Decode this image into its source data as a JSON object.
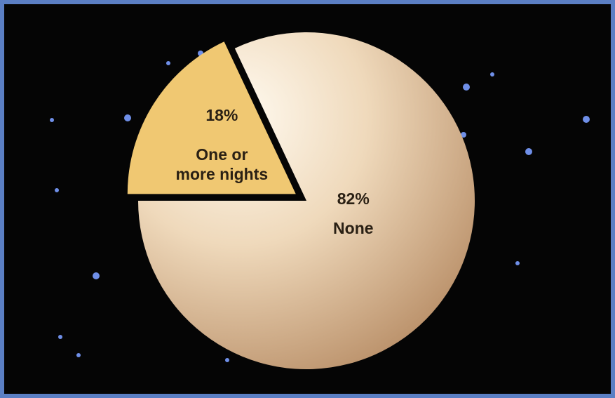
{
  "chart_data": {
    "type": "pie",
    "categories": [
      "One or\nmore nights",
      "None"
    ],
    "values": [
      18,
      82
    ],
    "value_labels": [
      "18%",
      "82%"
    ],
    "colors": [
      "#f0c872",
      "#e8cfae"
    ],
    "explode": [
      true,
      false
    ]
  }
}
